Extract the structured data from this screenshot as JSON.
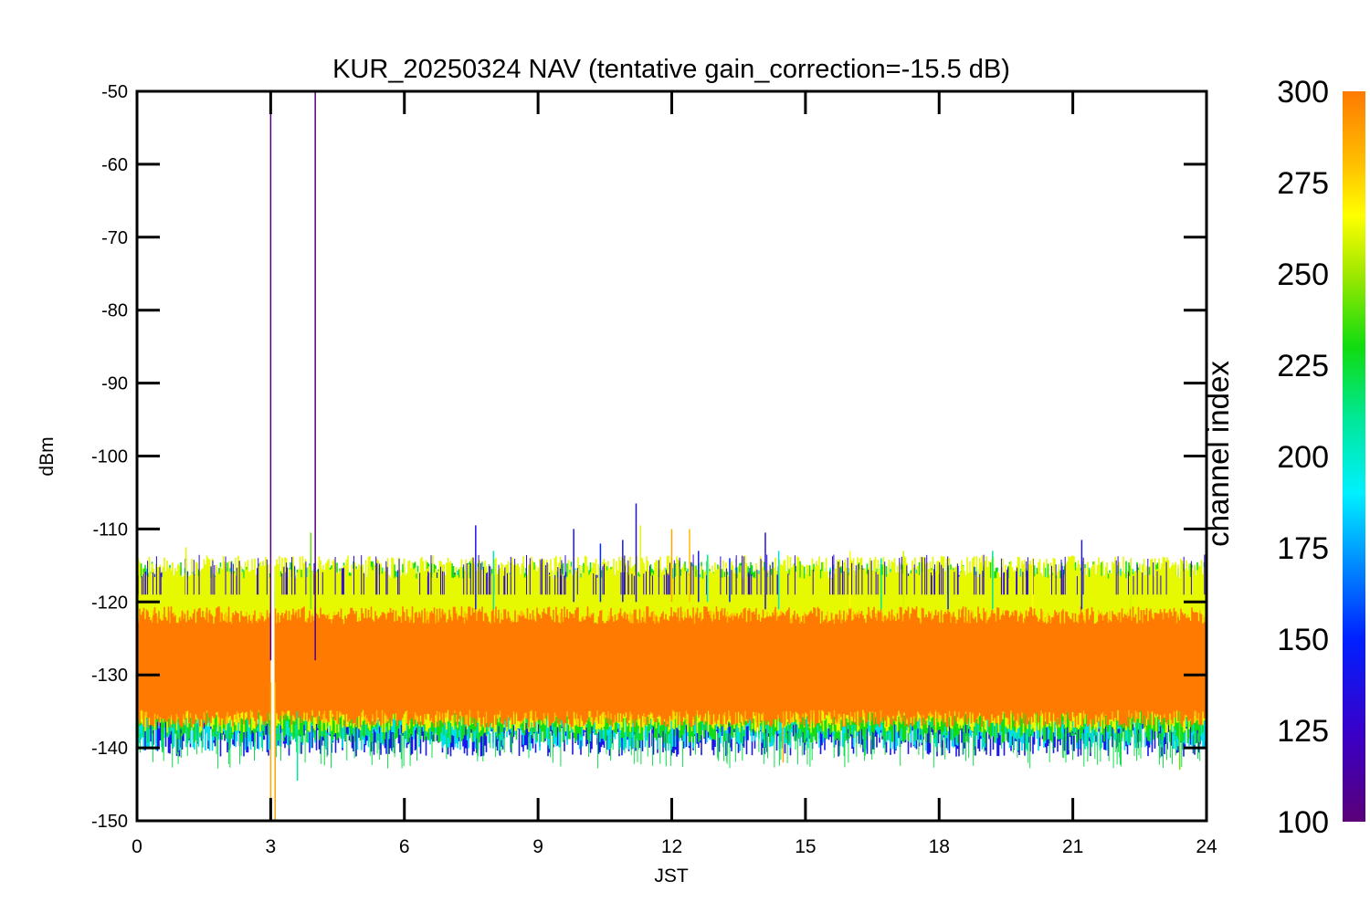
{
  "chart_data": {
    "type": "line",
    "title": "KUR_20250324 NAV (tentative gain_correction=-15.5 dB)",
    "xlabel": "JST",
    "ylabel": "dBm",
    "xlim": [
      0,
      24
    ],
    "ylim": [
      -150,
      -50
    ],
    "xticks": [
      "0",
      "3",
      "6",
      "9",
      "12",
      "15",
      "18",
      "21",
      "24"
    ],
    "yticks": [
      "-50",
      "-60",
      "-70",
      "-80",
      "-90",
      "-100",
      "-110",
      "-120",
      "-130",
      "-140",
      "-150"
    ],
    "colorbar": {
      "label": "channel index",
      "min": 100,
      "max": 300,
      "ticks": [
        "100",
        "125",
        "150",
        "175",
        "200",
        "225",
        "250",
        "275",
        "300"
      ],
      "colormap": "rainbow"
    },
    "noise_band": {
      "center_dbm": -128.5,
      "outer_top_dbm": -118,
      "outer_bottom_dbm": -139,
      "core_top_dbm": -123,
      "core_bottom_dbm": -135
    },
    "data_gap_hours": [
      3.0,
      3.1
    ],
    "spikes": [
      {
        "x": 3.0,
        "y_top": -50,
        "y_bottom": -128,
        "channel": 102
      },
      {
        "x": 4.0,
        "y_top": -50,
        "y_bottom": -128,
        "channel": 102
      },
      {
        "x": 3.0,
        "y_top": -131,
        "y_bottom": -150,
        "channel": 290
      },
      {
        "x": 3.1,
        "y_top": -131,
        "y_bottom": -150,
        "channel": 290
      },
      {
        "x": 1.1,
        "y_top": -112.5,
        "y_bottom": -121,
        "channel": 265
      },
      {
        "x": 3.9,
        "y_top": -110.5,
        "y_bottom": -121,
        "channel": 240
      },
      {
        "x": 7.6,
        "y_top": -109.5,
        "y_bottom": -121,
        "channel": 140
      },
      {
        "x": 8.0,
        "y_top": -113,
        "y_bottom": -121,
        "channel": 190
      },
      {
        "x": 9.8,
        "y_top": -110,
        "y_bottom": -120,
        "channel": 140
      },
      {
        "x": 10.4,
        "y_top": -112,
        "y_bottom": -120,
        "channel": 150
      },
      {
        "x": 10.9,
        "y_top": -111.5,
        "y_bottom": -120,
        "channel": 140
      },
      {
        "x": 11.2,
        "y_top": -106.5,
        "y_bottom": -120,
        "channel": 135
      },
      {
        "x": 11.3,
        "y_top": -109.5,
        "y_bottom": -120,
        "channel": 265
      },
      {
        "x": 12.0,
        "y_top": -110,
        "y_bottom": -120,
        "channel": 290
      },
      {
        "x": 12.4,
        "y_top": -110,
        "y_bottom": -120,
        "channel": 285
      },
      {
        "x": 12.6,
        "y_top": -113,
        "y_bottom": -120,
        "channel": 140
      },
      {
        "x": 12.8,
        "y_top": -113.5,
        "y_bottom": -120,
        "channel": 175
      },
      {
        "x": 13.3,
        "y_top": -114,
        "y_bottom": -120,
        "channel": 150
      },
      {
        "x": 14.1,
        "y_top": -110.5,
        "y_bottom": -121,
        "channel": 135
      },
      {
        "x": 14.4,
        "y_top": -113,
        "y_bottom": -121,
        "channel": 180
      },
      {
        "x": 16.0,
        "y_top": -113,
        "y_bottom": -121,
        "channel": 270
      },
      {
        "x": 16.7,
        "y_top": -114,
        "y_bottom": -121,
        "channel": 200
      },
      {
        "x": 17.2,
        "y_top": -113,
        "y_bottom": -121,
        "channel": 260
      },
      {
        "x": 18.2,
        "y_top": -115,
        "y_bottom": -121,
        "channel": 150
      },
      {
        "x": 19.2,
        "y_top": -113,
        "y_bottom": -121,
        "channel": 200
      },
      {
        "x": 20.1,
        "y_top": -114,
        "y_bottom": -121,
        "channel": 270
      },
      {
        "x": 21.2,
        "y_top": -111.5,
        "y_bottom": -121,
        "channel": 140
      },
      {
        "x": 22.3,
        "y_top": -114,
        "y_bottom": -121,
        "channel": 260
      },
      {
        "x": 14.5,
        "y_top": -135,
        "y_bottom": -142,
        "channel": 290
      },
      {
        "x": 3.6,
        "y_top": -135,
        "y_bottom": -144.5,
        "channel": 200
      },
      {
        "x": 23.4,
        "y_top": -135,
        "y_bottom": -143,
        "channel": 240
      }
    ]
  }
}
